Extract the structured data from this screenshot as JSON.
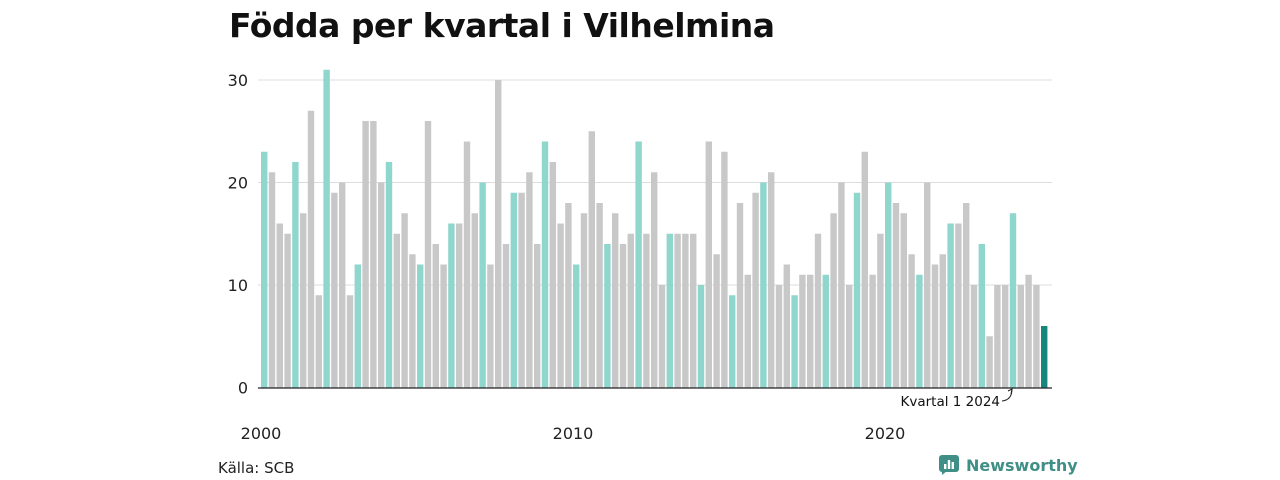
{
  "title": "Födda per kvartal i Vilhelmina",
  "source": "Källa: SCB",
  "brand": "Newsworthy",
  "colors": {
    "q1": "#8fd6cd",
    "other": "#c8c8c8",
    "latest": "#17877c",
    "brand": "#3f8f86",
    "grid": "#dddddd",
    "axis": "#222222"
  },
  "chart_data": {
    "type": "bar",
    "title": "Födda per kvartal i Vilhelmina",
    "xlabel": "",
    "ylabel": "",
    "ylim": [
      0,
      32
    ],
    "yticks": [
      0,
      10,
      20,
      30
    ],
    "grid": true,
    "start_year": 2000,
    "x_tick_labels": [
      "2000",
      "2010",
      "2020"
    ],
    "annotation": {
      "text": "Kvartal 1 2024",
      "target_index": 96
    },
    "values": [
      23,
      21,
      16,
      15,
      22,
      17,
      27,
      9,
      31,
      19,
      20,
      9,
      12,
      26,
      26,
      20,
      22,
      15,
      17,
      13,
      12,
      26,
      14,
      12,
      16,
      16,
      24,
      17,
      20,
      12,
      30,
      14,
      19,
      19,
      21,
      14,
      24,
      22,
      16,
      18,
      12,
      17,
      25,
      18,
      14,
      17,
      14,
      15,
      24,
      15,
      21,
      10,
      15,
      15,
      15,
      15,
      10,
      24,
      13,
      23,
      9,
      18,
      11,
      19,
      20,
      21,
      10,
      12,
      9,
      11,
      11,
      15,
      11,
      17,
      20,
      10,
      19,
      23,
      11,
      15,
      20,
      18,
      17,
      13,
      11,
      20,
      12,
      13,
      16,
      16,
      18,
      10,
      14,
      5,
      10,
      10,
      17,
      10,
      11,
      10,
      6
    ]
  }
}
